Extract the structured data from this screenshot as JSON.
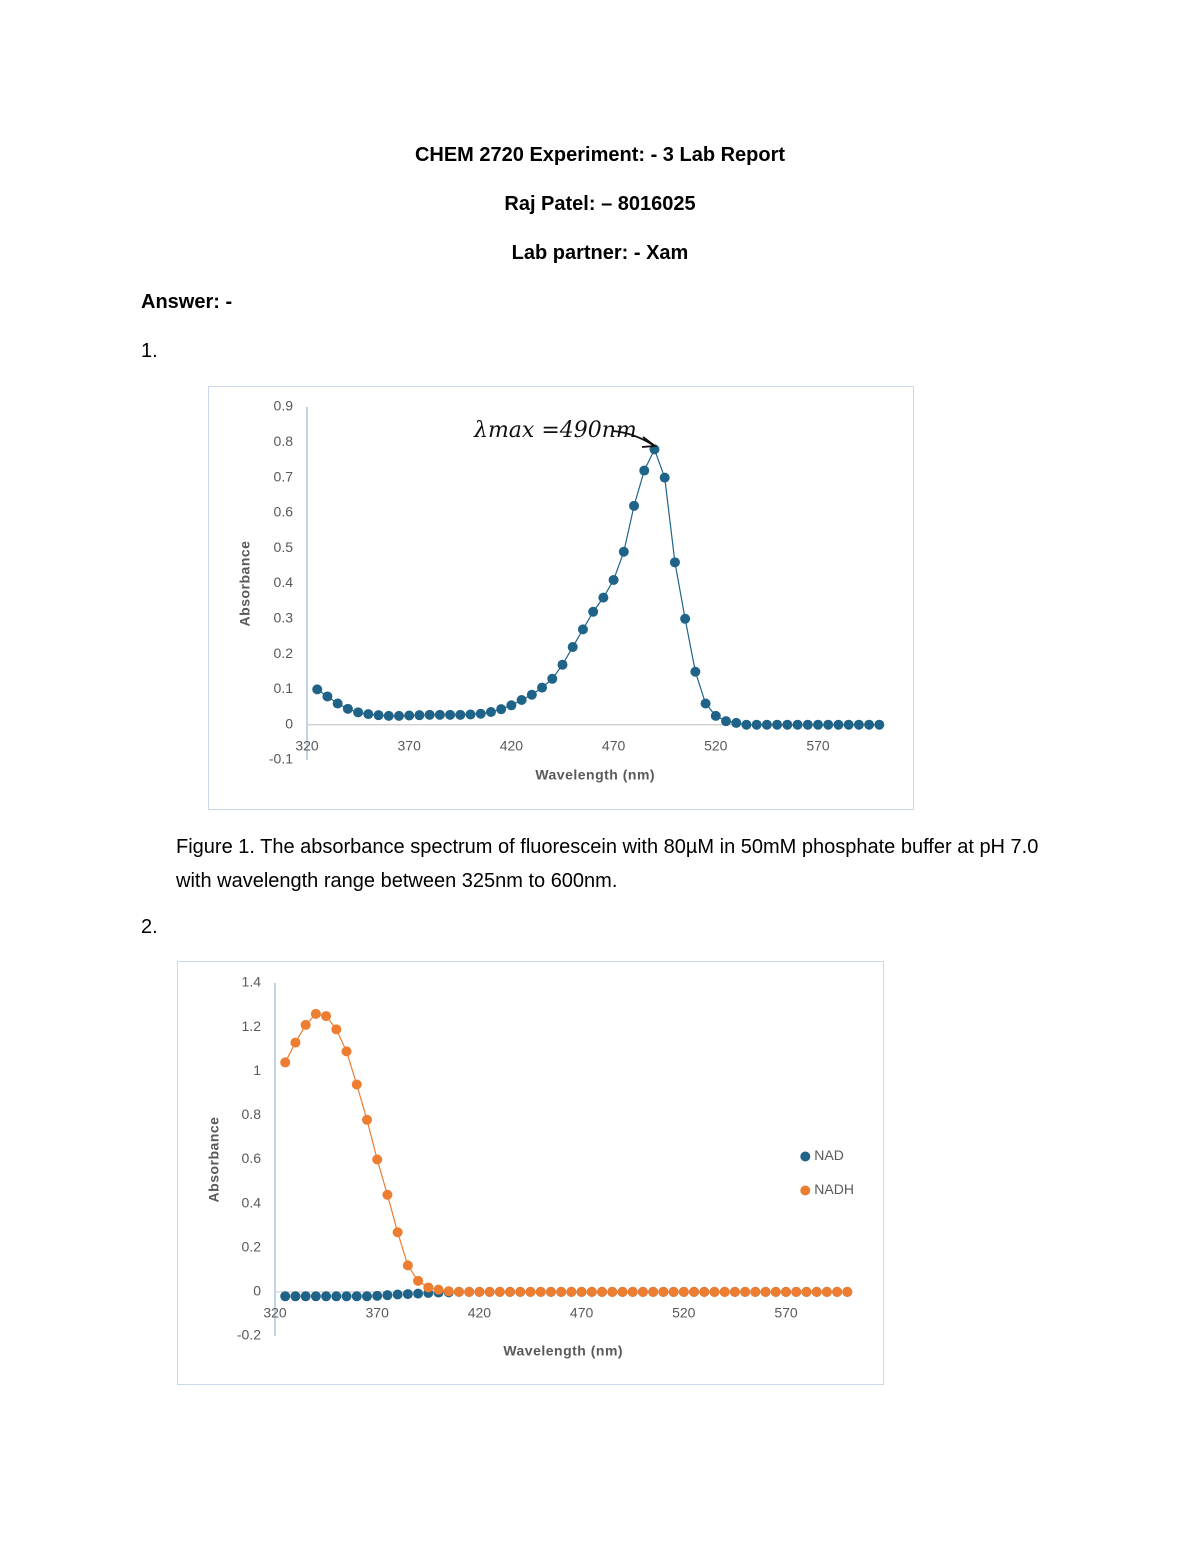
{
  "document": {
    "title": "CHEM 2720 Experiment: - 3 Lab Report",
    "author": "Raj Patel: – 8016025",
    "partner": "Lab partner: - Xam",
    "answer_label": "Answer: -",
    "items": [
      {
        "number": "1.",
        "caption": "Figure 1. The absorbance spectrum of fluorescein with 80µM in 50mM phosphate buffer at pH 7.0 with wavelength range between 325nm to 600nm."
      },
      {
        "number": "2."
      }
    ]
  },
  "chart_data": [
    {
      "type": "scatter",
      "x_label": "Wavelength (nm)",
      "y_label": "Absorbance",
      "annotation": "λmax =490nm",
      "xlim": [
        320,
        602
      ],
      "ylim": [
        -0.1,
        0.9
      ],
      "xticks": [
        320,
        370,
        420,
        470,
        520,
        570
      ],
      "yticks": [
        -0.1,
        0,
        0.1,
        0.2,
        0.3,
        0.4,
        0.5,
        0.6,
        0.7,
        0.8,
        0.9
      ],
      "line": true,
      "color": "#1f6488",
      "x": [
        325,
        330,
        335,
        340,
        345,
        350,
        355,
        360,
        365,
        370,
        375,
        380,
        385,
        390,
        395,
        400,
        405,
        410,
        415,
        420,
        425,
        430,
        435,
        440,
        445,
        450,
        455,
        460,
        465,
        470,
        475,
        480,
        485,
        490,
        495,
        500,
        505,
        510,
        515,
        520,
        525,
        530,
        535,
        540,
        545,
        550,
        555,
        560,
        565,
        570,
        575,
        580,
        585,
        590,
        595,
        600
      ],
      "values": [
        0.1,
        0.08,
        0.06,
        0.045,
        0.035,
        0.03,
        0.027,
        0.025,
        0.025,
        0.026,
        0.027,
        0.028,
        0.028,
        0.028,
        0.028,
        0.029,
        0.031,
        0.036,
        0.044,
        0.055,
        0.07,
        0.085,
        0.105,
        0.13,
        0.17,
        0.22,
        0.27,
        0.32,
        0.36,
        0.41,
        0.49,
        0.62,
        0.72,
        0.78,
        0.7,
        0.46,
        0.3,
        0.15,
        0.06,
        0.025,
        0.01,
        0.005,
        0,
        0,
        0,
        0,
        0,
        0,
        0,
        0,
        0,
        0,
        0,
        0,
        0,
        0
      ]
    },
    {
      "type": "scatter",
      "x_label": "Wavelength (nm)",
      "y_label": "Absorbance",
      "xlim": [
        320,
        602
      ],
      "ylim": [
        -0.2,
        1.4
      ],
      "xticks": [
        320,
        370,
        420,
        470,
        520,
        570
      ],
      "yticks": [
        -0.2,
        0,
        0.2,
        0.4,
        0.6,
        0.8,
        1,
        1.2,
        1.4
      ],
      "legend": "right",
      "x": [
        325,
        330,
        335,
        340,
        345,
        350,
        355,
        360,
        365,
        370,
        375,
        380,
        385,
        390,
        395,
        400,
        405,
        410,
        415,
        420,
        425,
        430,
        435,
        440,
        445,
        450,
        455,
        460,
        465,
        470,
        475,
        480,
        485,
        490,
        495,
        500,
        505,
        510,
        515,
        520,
        525,
        530,
        535,
        540,
        545,
        550,
        555,
        560,
        565,
        570,
        575,
        580,
        585,
        590,
        595,
        600
      ],
      "series": [
        {
          "name": "NAD",
          "color": "#1f6488",
          "line": false,
          "values": [
            -0.02,
            -0.02,
            -0.02,
            -0.02,
            -0.02,
            -0.02,
            -0.02,
            -0.02,
            -0.02,
            -0.018,
            -0.015,
            -0.012,
            -0.01,
            -0.008,
            -0.005,
            -0.003,
            -0.002,
            0,
            0,
            0,
            0,
            0,
            0,
            0,
            0,
            0,
            0,
            0,
            0,
            0,
            0,
            0,
            0,
            0,
            0,
            0,
            0,
            0,
            0,
            0,
            0,
            0,
            0,
            0,
            0,
            0,
            0,
            0,
            0,
            0,
            0,
            0,
            0,
            0,
            0,
            0
          ]
        },
        {
          "name": "NADH",
          "color": "#ed7d31",
          "line": true,
          "values": [
            1.04,
            1.13,
            1.21,
            1.26,
            1.25,
            1.19,
            1.09,
            0.94,
            0.78,
            0.6,
            0.44,
            0.27,
            0.12,
            0.05,
            0.02,
            0.01,
            0.003,
            0,
            0,
            0,
            0,
            0,
            0,
            0,
            0,
            0,
            0,
            0,
            0,
            0,
            0,
            0,
            0,
            0,
            0,
            0,
            0,
            0,
            0,
            0,
            0,
            0,
            0,
            0,
            0,
            0,
            0,
            0,
            0,
            0,
            0,
            0,
            0,
            0,
            0,
            0
          ]
        }
      ]
    }
  ]
}
